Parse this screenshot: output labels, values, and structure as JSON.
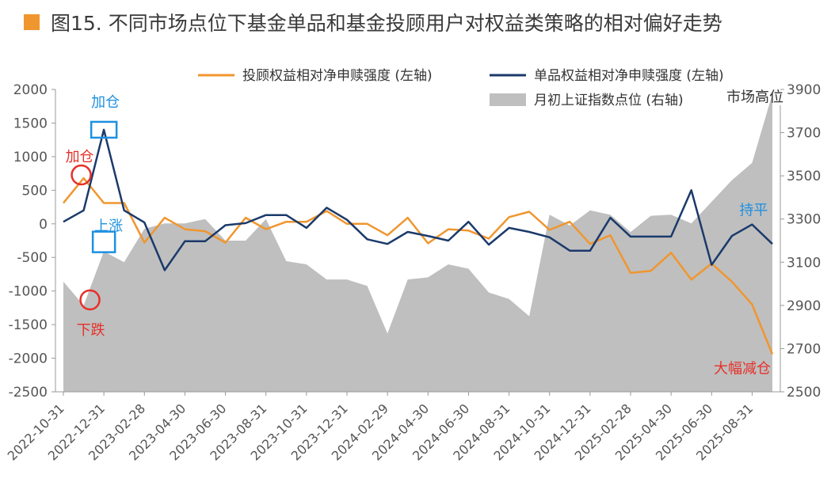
{
  "title": "图15. 不同市场点位下基金单品和基金投顾用户对权益类策略的相对偏好走势",
  "colors": {
    "accent": "#F0962E",
    "advisor_line": "#F0962E",
    "product_line": "#1B3A6B",
    "index_area": "#BFBFBF",
    "annotation_red": "#E6302A",
    "annotation_blue": "#1E90E0"
  },
  "chart_data": {
    "type": "line",
    "x": [
      "2022-10-31",
      "2022-11-30",
      "2022-12-31",
      "2023-01-31",
      "2023-02-28",
      "2023-03-31",
      "2023-04-30",
      "2023-05-31",
      "2023-06-30",
      "2023-07-31",
      "2023-08-31",
      "2023-09-30",
      "2023-10-31",
      "2023-11-30",
      "2023-12-31",
      "2024-01-31",
      "2024-02-29",
      "2024-03-31",
      "2024-04-30",
      "2024-05-31",
      "2024-06-30",
      "2024-07-31",
      "2024-08-31",
      "2024-09-30",
      "2024-10-31",
      "2024-11-30",
      "2024-12-31",
      "2025-01-31",
      "2025-02-28",
      "2025-03-31",
      "2025-04-30",
      "2025-05-31",
      "2025-06-30",
      "2025-07-31",
      "2025-08-31",
      "2025-09-30"
    ],
    "x_tick_labels": [
      "2022-10-31",
      "2022-12-31",
      "2023-02-28",
      "2023-04-30",
      "2023-06-30",
      "2023-08-31",
      "2023-10-31",
      "2023-12-31",
      "2024-02-29",
      "2024-04-30",
      "2024-06-30",
      "2024-08-31",
      "2024-10-31",
      "2024-12-31",
      "2025-02-28",
      "2025-04-30",
      "2025-06-30",
      "2025-08-31"
    ],
    "series": [
      {
        "name": "投顾权益相对净申赎强度 (左轴)",
        "axis": "left",
        "kind": "line",
        "color": "#F0962E",
        "values": [
          310,
          680,
          310,
          310,
          -280,
          90,
          -80,
          -110,
          -280,
          90,
          -80,
          30,
          30,
          190,
          0,
          0,
          -170,
          90,
          -290,
          -80,
          -100,
          -220,
          100,
          180,
          -90,
          30,
          -300,
          -170,
          -730,
          -700,
          -430,
          -830,
          -590,
          -860,
          -1200,
          -1940
        ]
      },
      {
        "name": "单品权益相对净申赎强度 (左轴)",
        "axis": "left",
        "kind": "line",
        "color": "#1B3A6B",
        "values": [
          30,
          200,
          1400,
          200,
          20,
          -690,
          -260,
          -260,
          -20,
          10,
          130,
          130,
          -60,
          240,
          60,
          -230,
          -300,
          -120,
          -180,
          -250,
          30,
          -310,
          -60,
          -120,
          -200,
          -400,
          -400,
          90,
          -190,
          -190,
          -190,
          500,
          -610,
          -180,
          -10,
          -300
        ]
      },
      {
        "name": "月初上证指数点位 (右轴)",
        "axis": "right",
        "kind": "area",
        "color": "#BFBFBF",
        "values": [
          3010,
          2900,
          3150,
          3100,
          3255,
          3280,
          3280,
          3300,
          3200,
          3200,
          3300,
          3105,
          3090,
          3020,
          3020,
          2990,
          2770,
          3020,
          3030,
          3090,
          3070,
          2960,
          2930,
          2850,
          3320,
          3270,
          3340,
          3320,
          3240,
          3315,
          3320,
          3280,
          3380,
          3480,
          3560,
          3880
        ]
      }
    ],
    "y_left": {
      "min": -2500,
      "max": 2000,
      "step": 500
    },
    "y_right": {
      "min": 2500,
      "max": 3900,
      "step": 200
    },
    "legend_position": "top-right",
    "grid": false,
    "annotations": [
      {
        "text": "加仓",
        "color": "red",
        "series": 0,
        "x": "2022-11-30"
      },
      {
        "text": "下跌",
        "color": "red",
        "series": 2,
        "x": "2022-11-30"
      },
      {
        "text": "加仓",
        "color": "blue",
        "series": 1,
        "x": "2022-12-31"
      },
      {
        "text": "上涨",
        "color": "blue",
        "series": 2,
        "x": "2022-12-31"
      },
      {
        "text": "市场高位",
        "color": "dark",
        "series": 2,
        "x": "2025-09-30"
      },
      {
        "text": "持平",
        "color": "blue",
        "series": 1,
        "x": "2025-08-31"
      },
      {
        "text": "大幅减仓",
        "color": "red",
        "series": 0,
        "x": "2025-09-30"
      }
    ]
  }
}
